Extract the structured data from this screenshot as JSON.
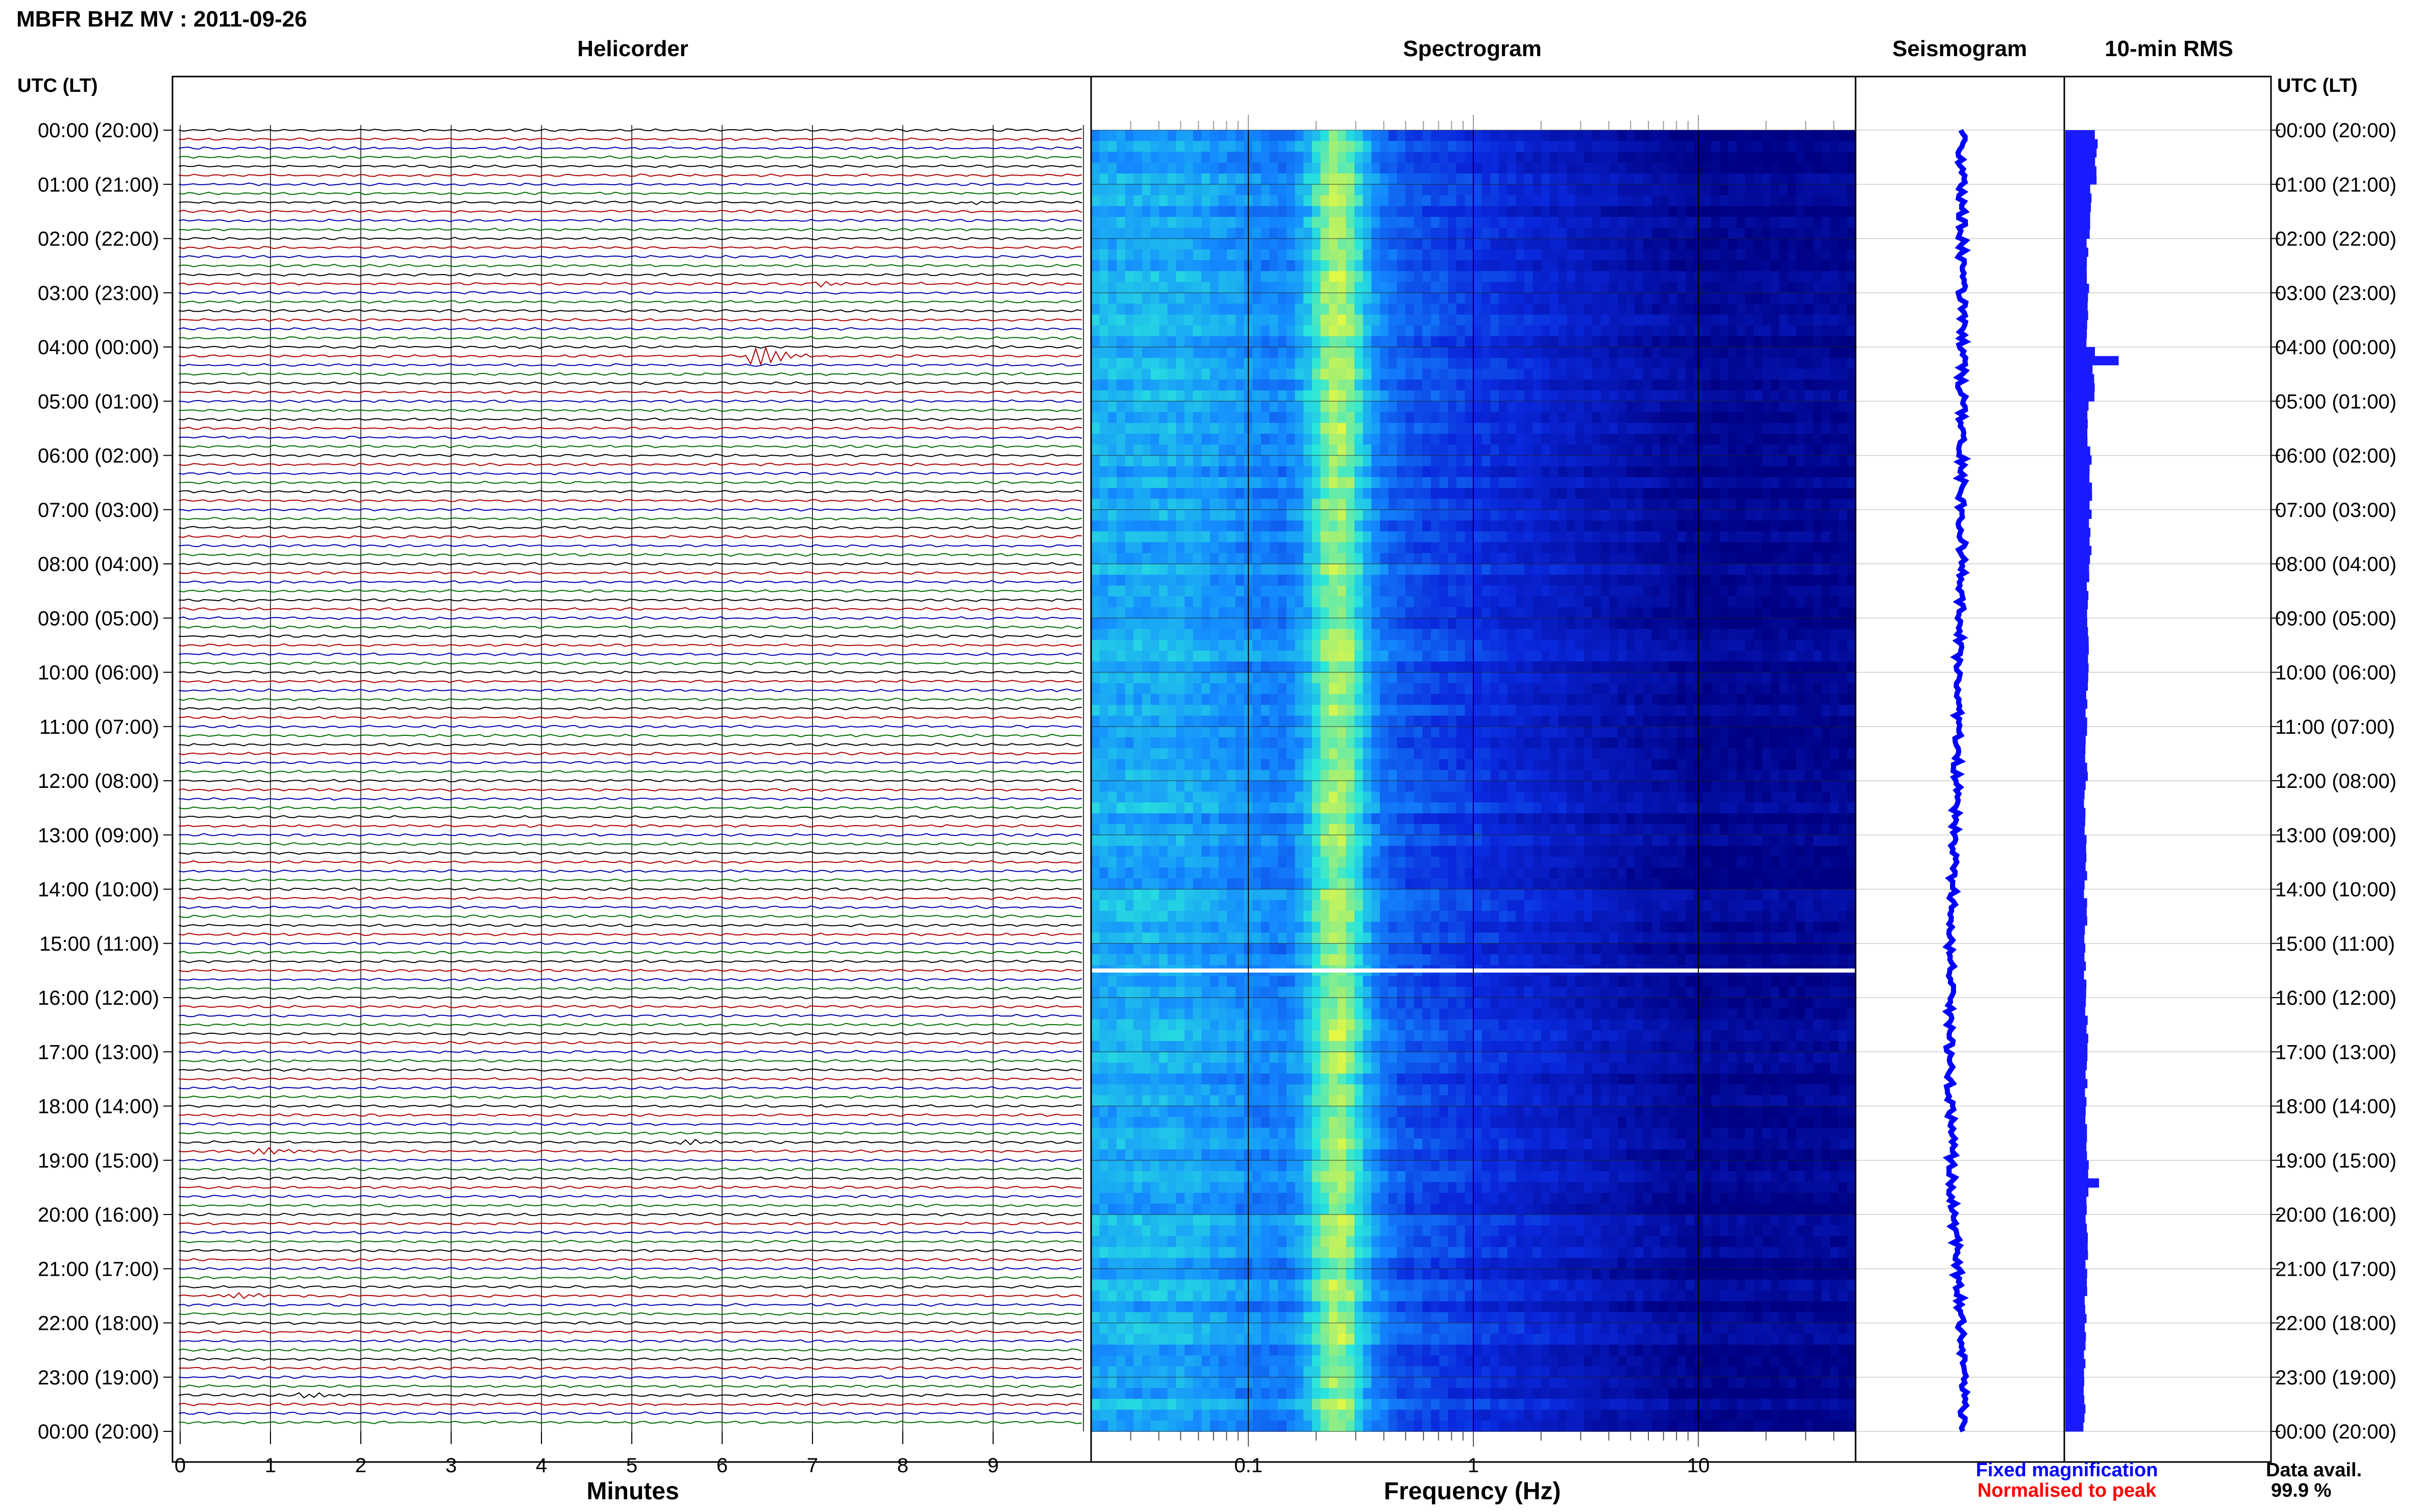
{
  "title": "MBFR BHZ MV : 2011-09-26",
  "panels": {
    "helicorder": "Helicorder",
    "spectrogram": "Spectrogram",
    "seismogram": "Seismogram",
    "rms": "10-min RMS"
  },
  "time_axis": {
    "header_left": "UTC (LT)",
    "header_right": "UTC (LT)",
    "labels": [
      "00:00 (20:00)",
      "01:00 (21:00)",
      "02:00 (22:00)",
      "03:00 (23:00)",
      "04:00 (00:00)",
      "05:00 (01:00)",
      "06:00 (02:00)",
      "07:00 (03:00)",
      "08:00 (04:00)",
      "09:00 (05:00)",
      "10:00 (06:00)",
      "11:00 (07:00)",
      "12:00 (08:00)",
      "13:00 (09:00)",
      "14:00 (10:00)",
      "15:00 (11:00)",
      "16:00 (12:00)",
      "17:00 (13:00)",
      "18:00 (14:00)",
      "19:00 (15:00)",
      "20:00 (16:00)",
      "21:00 (17:00)",
      "22:00 (18:00)",
      "23:00 (19:00)",
      "00:00 (20:00)"
    ]
  },
  "helicorder_axis": {
    "label": "Minutes",
    "ticks": [
      "0",
      "1",
      "2",
      "3",
      "4",
      "5",
      "6",
      "7",
      "8",
      "9"
    ]
  },
  "spectrogram_axis": {
    "label": "Frequency (Hz)",
    "ticks": [
      "0.1",
      "1",
      "10"
    ]
  },
  "legend": {
    "fixed": "Fixed magnification",
    "normalised": "Normalised to peak",
    "fixed_color": "#0000ff",
    "normalised_color": "#ff0000"
  },
  "availability": {
    "label": "Data avail.",
    "value": "99.9 %"
  },
  "chart_data": [
    {
      "type": "line",
      "name": "Helicorder",
      "xlabel": "Minutes",
      "xlim": [
        0,
        10
      ],
      "traces_per_hour": 6,
      "trace_colors": [
        "#000000",
        "#b00000",
        "#0000b0",
        "#007000"
      ],
      "events": [
        {
          "hour": 1.3,
          "minute": 8.8,
          "amp": 0.4
        },
        {
          "hour": 2.8,
          "minute": 7.2,
          "amp": 0.3
        },
        {
          "hour": 4.17,
          "minute": 6.5,
          "amp": 1.0
        },
        {
          "hour": 15.0,
          "minute": 4.2,
          "amp": 0.15
        },
        {
          "hour": 18.83,
          "minute": 1.0,
          "amp": 0.5
        },
        {
          "hour": 18.67,
          "minute": 5.7,
          "amp": 0.35
        },
        {
          "hour": 21.5,
          "minute": 0.7,
          "amp": 0.5
        },
        {
          "hour": 23.33,
          "minute": 1.5,
          "amp": 0.3
        }
      ]
    },
    {
      "type": "heatmap",
      "name": "Spectrogram",
      "xlabel": "Frequency (Hz)",
      "xscale": "log",
      "xlim": [
        0.02,
        50
      ],
      "peak_frequency_hz": 0.25,
      "gap_hour": 15.5
    },
    {
      "type": "line",
      "name": "Seismogram",
      "note_drift": [
        0,
        0,
        0,
        0,
        0,
        0,
        0,
        0,
        0,
        -0.1,
        -0.15,
        -0.2,
        -0.25,
        -0.35,
        -0.45,
        -0.55,
        -0.6,
        -0.6,
        -0.55,
        -0.5,
        -0.4,
        -0.2,
        0,
        0.1,
        0.1
      ]
    },
    {
      "type": "bar",
      "name": "10-min RMS",
      "bins": 144,
      "hourly_level": [
        0.55,
        0.45,
        0.4,
        0.4,
        0.5,
        0.42,
        0.45,
        0.45,
        0.4,
        0.4,
        0.38,
        0.37,
        0.36,
        0.36,
        0.36,
        0.36,
        0.38,
        0.38,
        0.38,
        0.4,
        0.38,
        0.36,
        0.35,
        0.35
      ],
      "spikes": [
        {
          "hour": 4.17,
          "value": 0.95
        },
        {
          "hour": 19.33,
          "value": 0.6
        }
      ]
    }
  ]
}
